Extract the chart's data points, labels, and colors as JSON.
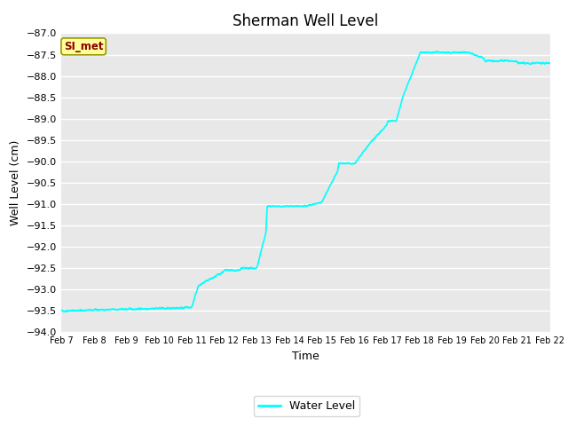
{
  "title": "Sherman Well Level",
  "xlabel": "Time",
  "ylabel": "Well Level (cm)",
  "line_color": "#00FFFF",
  "line_width": 1.2,
  "background_color": "#E8E8E8",
  "figure_background": "#FFFFFF",
  "ylim": [
    -94.0,
    -87.0
  ],
  "yticks": [
    -94.0,
    -93.5,
    -93.0,
    -92.5,
    -92.0,
    -91.5,
    -91.0,
    -90.5,
    -90.0,
    -89.5,
    -89.0,
    -88.5,
    -88.0,
    -87.5,
    -87.0
  ],
  "xtick_labels": [
    "Feb 7",
    "Feb 8",
    "Feb 9",
    "Feb 10",
    "Feb 11",
    "Feb 12",
    "Feb 13",
    "Feb 14",
    "Feb 15",
    "Feb 16",
    "Feb 17",
    "Feb 18",
    "Feb 19",
    "Feb 20",
    "Feb 21",
    "Feb 22"
  ],
  "legend_label": "Water Level",
  "legend_line_color": "#00FFFF",
  "annotation_text": "SI_met",
  "annotation_text_color": "#8B0000",
  "annotation_bg": "#FFFF99",
  "annotation_border": "#999900",
  "title_fontsize": 12,
  "axis_label_fontsize": 9,
  "tick_fontsize": 8
}
